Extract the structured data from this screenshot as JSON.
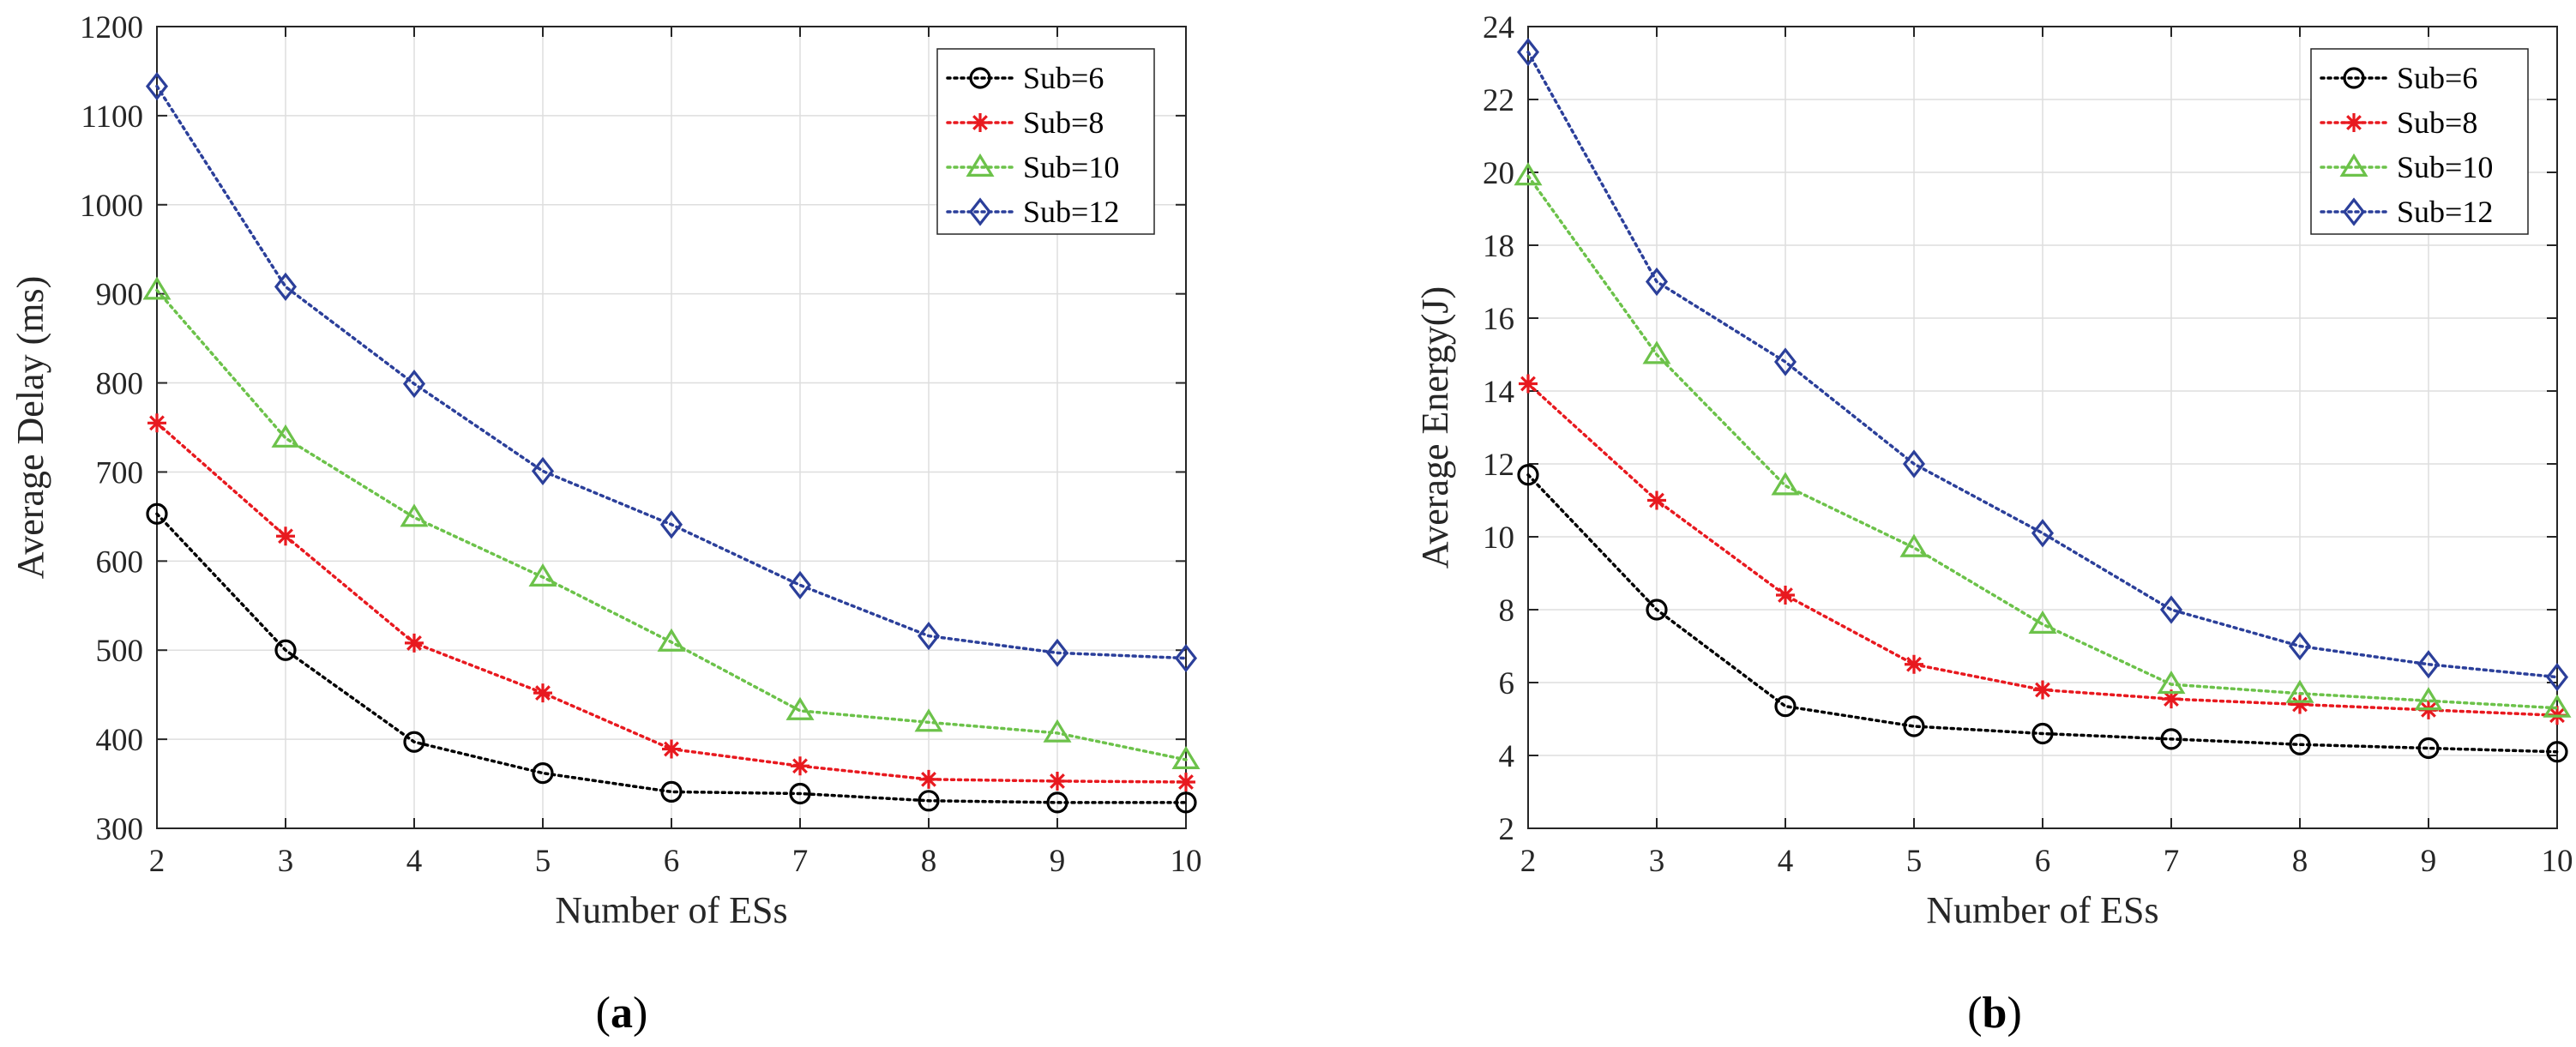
{
  "chart_data": [
    {
      "type": "line",
      "title": "",
      "xlabel": "Number of ESs",
      "ylabel": "Average Delay (ms)",
      "panel_label": {
        "open": "(",
        "letter": "a",
        "close": ")"
      },
      "x": [
        2,
        3,
        4,
        5,
        6,
        7,
        8,
        9,
        10
      ],
      "xlim": [
        2,
        10
      ],
      "ylim": [
        300,
        1200
      ],
      "xticks": [
        2,
        3,
        4,
        5,
        6,
        7,
        8,
        9,
        10
      ],
      "yticks": [
        300,
        400,
        500,
        600,
        700,
        800,
        900,
        1000,
        1100,
        1200
      ],
      "grid": true,
      "legend_location": "top-right",
      "series": [
        {
          "name": "Sub=6",
          "color": "#000000",
          "marker": "circle",
          "values": [
            653,
            500,
            397,
            362,
            341,
            339,
            331,
            329,
            329
          ]
        },
        {
          "name": "Sub=8",
          "color": "#e8191f",
          "marker": "asterisk",
          "values": [
            755,
            628,
            508,
            452,
            389,
            370,
            355,
            353,
            352
          ]
        },
        {
          "name": "Sub=10",
          "color": "#6cc24a",
          "marker": "triangle",
          "values": [
            904,
            738,
            649,
            582,
            509,
            432,
            419,
            407,
            377
          ]
        },
        {
          "name": "Sub=12",
          "color": "#2b3f9a",
          "marker": "diamond",
          "values": [
            1133,
            908,
            799,
            701,
            641,
            573,
            516,
            497,
            491
          ]
        }
      ]
    },
    {
      "type": "line",
      "title": "",
      "xlabel": "Number of ESs",
      "ylabel": "Average Energy(J)",
      "panel_label": {
        "open": "(",
        "letter": "b",
        "close": ")"
      },
      "x": [
        2,
        3,
        4,
        5,
        6,
        7,
        8,
        9,
        10
      ],
      "xlim": [
        2,
        10
      ],
      "ylim": [
        2,
        24
      ],
      "xticks": [
        2,
        3,
        4,
        5,
        6,
        7,
        8,
        9,
        10
      ],
      "yticks": [
        2,
        4,
        6,
        8,
        10,
        12,
        14,
        16,
        18,
        20,
        22,
        24
      ],
      "grid": true,
      "legend_location": "top-right",
      "series": [
        {
          "name": "Sub=6",
          "color": "#000000",
          "marker": "circle",
          "values": [
            11.7,
            8.0,
            5.35,
            4.8,
            4.6,
            4.45,
            4.3,
            4.2,
            4.1
          ]
        },
        {
          "name": "Sub=8",
          "color": "#e8191f",
          "marker": "asterisk",
          "values": [
            14.2,
            11.0,
            8.4,
            6.5,
            5.8,
            5.55,
            5.4,
            5.25,
            5.1
          ]
        },
        {
          "name": "Sub=10",
          "color": "#6cc24a",
          "marker": "triangle",
          "values": [
            19.9,
            15.0,
            11.4,
            9.7,
            7.6,
            5.95,
            5.7,
            5.5,
            5.3
          ]
        },
        {
          "name": "Sub=12",
          "color": "#2b3f9a",
          "marker": "diamond",
          "values": [
            23.3,
            17.0,
            14.8,
            12.0,
            10.1,
            8.0,
            7.0,
            6.5,
            6.15
          ]
        }
      ]
    }
  ]
}
